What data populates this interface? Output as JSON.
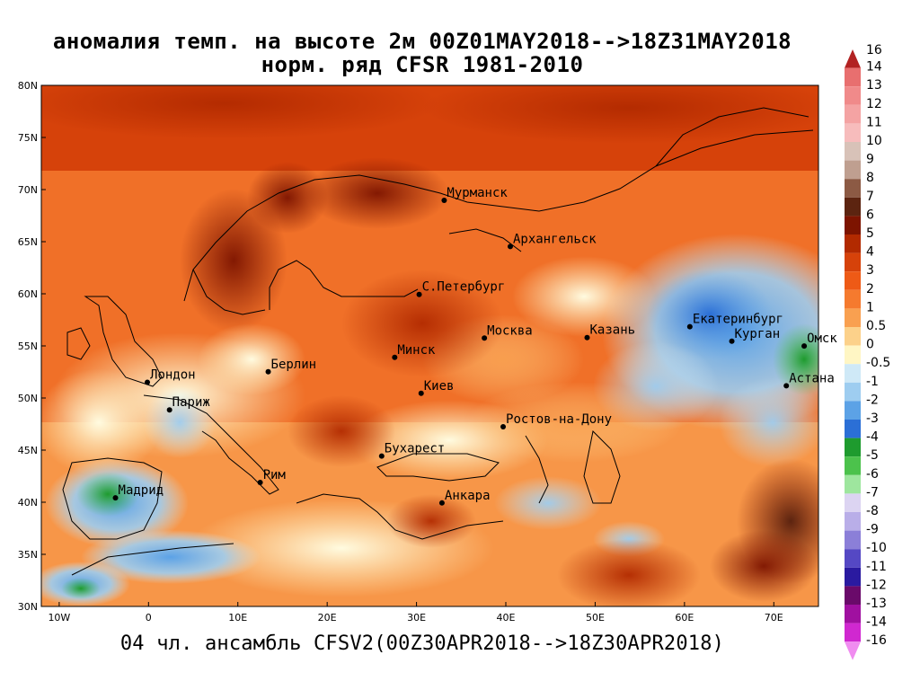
{
  "title_line1": "аномалия темп. на высоте 2м 00Z01MAY2018-->18Z31MAY2018",
  "title_line2": "норм. ряд CFSR 1981-2010",
  "footer": "04 чл. ансамбль CFSV2(00Z30APR2018-->18Z30APR2018)",
  "map": {
    "lon_range": [
      -12,
      75
    ],
    "lat_range": [
      30,
      80
    ],
    "lat_ticks": [
      {
        "v": 80,
        "t": "80N"
      },
      {
        "v": 75,
        "t": "75N"
      },
      {
        "v": 70,
        "t": "70N"
      },
      {
        "v": 65,
        "t": "65N"
      },
      {
        "v": 60,
        "t": "60N"
      },
      {
        "v": 55,
        "t": "55N"
      },
      {
        "v": 50,
        "t": "50N"
      },
      {
        "v": 45,
        "t": "45N"
      },
      {
        "v": 40,
        "t": "40N"
      },
      {
        "v": 35,
        "t": "35N"
      },
      {
        "v": 30,
        "t": "30N"
      }
    ],
    "lon_ticks": [
      {
        "v": -10,
        "t": "10W"
      },
      {
        "v": 0,
        "t": "0"
      },
      {
        "v": 10,
        "t": "10E"
      },
      {
        "v": 20,
        "t": "20E"
      },
      {
        "v": 30,
        "t": "30E"
      },
      {
        "v": 40,
        "t": "40E"
      },
      {
        "v": 50,
        "t": "50E"
      },
      {
        "v": 60,
        "t": "60E"
      },
      {
        "v": 70,
        "t": "70E"
      }
    ],
    "cities": [
      {
        "name": "Мурманск",
        "lon": 33.1,
        "lat": 68.97
      },
      {
        "name": "Архангельск",
        "lon": 40.5,
        "lat": 64.54
      },
      {
        "name": "С.Петербург",
        "lon": 30.3,
        "lat": 59.94
      },
      {
        "name": "Москва",
        "lon": 37.6,
        "lat": 55.75
      },
      {
        "name": "Казань",
        "lon": 49.1,
        "lat": 55.8
      },
      {
        "name": "Екатеринбург",
        "lon": 60.6,
        "lat": 56.84
      },
      {
        "name": "Курган",
        "lon": 65.3,
        "lat": 55.45
      },
      {
        "name": "Омск",
        "lon": 73.4,
        "lat": 54.99
      },
      {
        "name": "Астана",
        "lon": 71.4,
        "lat": 51.17
      },
      {
        "name": "Минск",
        "lon": 27.56,
        "lat": 53.9
      },
      {
        "name": "Берлин",
        "lon": 13.4,
        "lat": 52.52
      },
      {
        "name": "Лондон",
        "lon": -0.13,
        "lat": 51.51
      },
      {
        "name": "Париж",
        "lon": 2.35,
        "lat": 48.86
      },
      {
        "name": "Киев",
        "lon": 30.52,
        "lat": 50.45
      },
      {
        "name": "Ростов-на-Дону",
        "lon": 39.7,
        "lat": 47.24
      },
      {
        "name": "Бухарест",
        "lon": 26.1,
        "lat": 44.43
      },
      {
        "name": "Рим",
        "lon": 12.5,
        "lat": 41.9
      },
      {
        "name": "Мадрид",
        "lon": -3.7,
        "lat": 40.42
      },
      {
        "name": "Анкара",
        "lon": 32.85,
        "lat": 39.93
      }
    ]
  },
  "colorbar": {
    "levels": [
      {
        "label": "16",
        "color": "#b22222"
      },
      {
        "label": "14",
        "color": "#e86f6f"
      },
      {
        "label": "13",
        "color": "#f08a8a"
      },
      {
        "label": "12",
        "color": "#f4a3a3"
      },
      {
        "label": "11",
        "color": "#f7bcbc"
      },
      {
        "label": "10",
        "color": "#d8c2b8"
      },
      {
        "label": "9",
        "color": "#bf9f90"
      },
      {
        "label": "8",
        "color": "#8c5a44"
      },
      {
        "label": "7",
        "color": "#5c2410"
      },
      {
        "label": "6",
        "color": "#7d1400"
      },
      {
        "label": "5",
        "color": "#b22a00"
      },
      {
        "label": "4",
        "color": "#d6420a"
      },
      {
        "label": "3",
        "color": "#ee5a16"
      },
      {
        "label": "2",
        "color": "#f57a2e"
      },
      {
        "label": "1",
        "color": "#f9a050"
      },
      {
        "label": "0.5",
        "color": "#fcd18a"
      },
      {
        "label": "0",
        "color": "#fff6c4"
      },
      {
        "label": "-0.5",
        "color": "#cfe9f7"
      },
      {
        "label": "-1",
        "color": "#9ecdf0"
      },
      {
        "label": "-2",
        "color": "#5ca2e6"
      },
      {
        "label": "-3",
        "color": "#2b6fd6"
      },
      {
        "label": "-4",
        "color": "#1e9b2e"
      },
      {
        "label": "-5",
        "color": "#4cc24c"
      },
      {
        "label": "-6",
        "color": "#9ee69e"
      },
      {
        "label": "-7",
        "color": "#dcd4f2"
      },
      {
        "label": "-8",
        "color": "#b9aee8"
      },
      {
        "label": "-9",
        "color": "#8b7fd8"
      },
      {
        "label": "-10",
        "color": "#5548c4"
      },
      {
        "label": "-11",
        "color": "#2a1aa0"
      },
      {
        "label": "-12",
        "color": "#6a0a6a"
      },
      {
        "label": "-13",
        "color": "#a010a0"
      },
      {
        "label": "-14",
        "color": "#d028d0"
      },
      {
        "label": "-16",
        "color": "#f08cf0"
      }
    ]
  }
}
